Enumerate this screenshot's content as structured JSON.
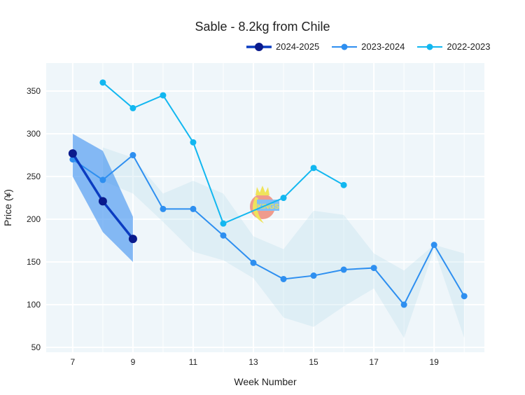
{
  "chart_data": {
    "type": "line",
    "title": "Sable - 8.2kg from Chile",
    "xlabel": "Week Number",
    "ylabel": "Price (¥)",
    "xlim": [
      6.12,
      20.67
    ],
    "ylim": [
      44.3,
      382.8
    ],
    "xticks": [
      7,
      9,
      11,
      13,
      15,
      17,
      19
    ],
    "yticks": [
      50,
      100,
      150,
      200,
      250,
      300,
      350
    ],
    "grid": true,
    "legend_position": "top-right",
    "series": [
      {
        "name": "2024-2025",
        "color": "#0a1a8c",
        "line_color": "#0b3cc1",
        "x": [
          7,
          8,
          9
        ],
        "y": [
          277,
          221,
          177
        ],
        "band": {
          "color": "#3b8ff0",
          "opacity": 0.6,
          "x": [
            7,
            8,
            9
          ],
          "upper": [
            300,
            280,
            203
          ],
          "lower": [
            250,
            185,
            150
          ]
        }
      },
      {
        "name": "2023-2024",
        "color": "#2e8ff0",
        "x": [
          7,
          8,
          9,
          10,
          11,
          12,
          13,
          14,
          15,
          16,
          17,
          18,
          19,
          20
        ],
        "y": [
          270,
          246,
          275,
          212,
          212,
          181,
          149,
          130,
          134,
          141,
          143,
          100,
          170,
          110
        ],
        "band": {
          "color": "#add8e6",
          "opacity": 0.25,
          "x": [
            8,
            9,
            10,
            11,
            12,
            13,
            14,
            15,
            16,
            17,
            18,
            19,
            20
          ],
          "upper": [
            284,
            272,
            230,
            245,
            230,
            180,
            165,
            210,
            205,
            160,
            140,
            170,
            160
          ],
          "lower": [
            245,
            230,
            197,
            162,
            152,
            131,
            85,
            74,
            98,
            119,
            61,
            165,
            61
          ]
        }
      },
      {
        "name": "2022-2023",
        "color": "#12b7f0",
        "x": [
          8,
          9,
          10,
          11,
          12,
          14,
          15,
          16
        ],
        "y": [
          360,
          330,
          345,
          290,
          195,
          225,
          260,
          240
        ]
      }
    ]
  },
  "logo_text": "KINGS"
}
